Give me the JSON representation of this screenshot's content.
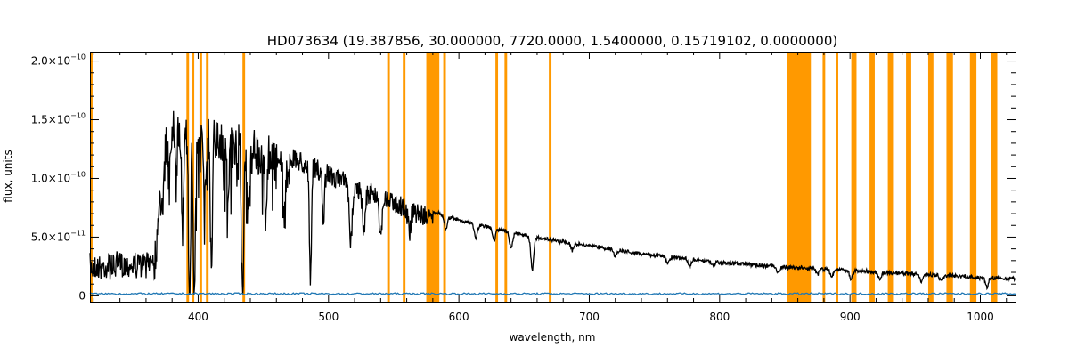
{
  "chart_data": {
    "type": "line",
    "title": "HD073634    (19.387856, 30.000000, 7720.0000, 1.5400000, 0.15719102, 0.0000000)",
    "xlabel": "wavelength, nm",
    "ylabel": "flux, units",
    "xlim": [
      317,
      1027
    ],
    "ylim": [
      -5e-12,
      2.08e-10
    ],
    "x_ticks": [
      {
        "value": 400,
        "label": "400"
      },
      {
        "value": 500,
        "label": "500"
      },
      {
        "value": 600,
        "label": "600"
      },
      {
        "value": 700,
        "label": "700"
      },
      {
        "value": 800,
        "label": "800"
      },
      {
        "value": 900,
        "label": "900"
      },
      {
        "value": 1000,
        "label": "1000"
      }
    ],
    "y_ticks": [
      {
        "value": 0,
        "label": "0",
        "exp": ""
      },
      {
        "value": 5e-11,
        "label": "5.0×10",
        "exp": "−11"
      },
      {
        "value": 1e-10,
        "label": "1.0×10",
        "exp": "−10"
      },
      {
        "value": 1.5e-10,
        "label": "1.5×10",
        "exp": "−10"
      },
      {
        "value": 2e-10,
        "label": "2.0×10",
        "exp": "−10"
      }
    ],
    "grid": false,
    "colors": {
      "spectrum": "#000000",
      "error": "#1f77b4",
      "mask": "#ff9900"
    },
    "masked_bands": [
      [
        317,
        319
      ],
      [
        391,
        393
      ],
      [
        395,
        397
      ],
      [
        401,
        403
      ],
      [
        406,
        408
      ],
      [
        434,
        436
      ],
      [
        545,
        547
      ],
      [
        557,
        559
      ],
      [
        575,
        585
      ],
      [
        588,
        590
      ],
      [
        628,
        630
      ],
      [
        635,
        637
      ],
      [
        669,
        671
      ],
      [
        852,
        870
      ],
      [
        879,
        881
      ],
      [
        889,
        891
      ],
      [
        901,
        905
      ],
      [
        915,
        919
      ],
      [
        929,
        933
      ],
      [
        943,
        947
      ],
      [
        960,
        964
      ],
      [
        974,
        979
      ],
      [
        992,
        997
      ],
      [
        1008,
        1013
      ]
    ],
    "series": [
      {
        "values_x": [
          317,
          330,
          345,
          360,
          366,
          370,
          373,
          377,
          380,
          385,
          390,
          395,
          400,
          410,
          420,
          430,
          450,
          470,
          500,
          530,
          560,
          578,
          600,
          650,
          700,
          750,
          800,
          850,
          870,
          900,
          950,
          1000,
          1027
        ],
        "values_y": [
          3.5e-11,
          3.6e-11,
          3.7e-11,
          3.8e-11,
          4.5e-11,
          8e-11,
          1.3e-10,
          1.55e-10,
          1.6e-10,
          1.62e-10,
          1.6e-10,
          1.6e-10,
          1.58e-10,
          1.55e-10,
          1.52e-10,
          1.47e-10,
          1.37e-10,
          1.27e-10,
          1.12e-10,
          9.7e-11,
          8.4e-11,
          7.4e-11,
          6.6e-11,
          5.3e-11,
          4.4e-11,
          3.6e-11,
          3e-11,
          2.6e-11,
          2.5e-11,
          2.3e-11,
          2e-11,
          1.7e-11,
          1.6e-11
        ]
      }
    ],
    "absorption_lines": [
      {
        "x": 373,
        "depth": 3.5e-11
      },
      {
        "x": 378,
        "depth": 4e-11
      },
      {
        "x": 383,
        "depth": 4.5e-11
      },
      {
        "x": 388,
        "depth": 7.5e-11
      },
      {
        "x": 393.4,
        "depth": 1.55e-10
      },
      {
        "x": 397,
        "depth": 1.45e-10
      },
      {
        "x": 405,
        "depth": 6e-11
      },
      {
        "x": 410.2,
        "depth": 1.2e-10
      },
      {
        "x": 422.7,
        "depth": 5e-11
      },
      {
        "x": 434,
        "depth": 1.35e-10
      },
      {
        "x": 438,
        "depth": 6e-11
      },
      {
        "x": 452,
        "depth": 5e-11
      },
      {
        "x": 466,
        "depth": 5.5e-11
      },
      {
        "x": 486.1,
        "depth": 1e-10
      },
      {
        "x": 496,
        "depth": 4.5e-11
      },
      {
        "x": 517,
        "depth": 5e-11
      },
      {
        "x": 527,
        "depth": 3.5e-11
      },
      {
        "x": 540,
        "depth": 3e-11
      },
      {
        "x": 562,
        "depth": 2e-11
      },
      {
        "x": 590,
        "depth": 1.2e-11
      },
      {
        "x": 613,
        "depth": 1.2e-11
      },
      {
        "x": 627,
        "depth": 1e-11
      },
      {
        "x": 640,
        "depth": 1.4e-11
      },
      {
        "x": 656.3,
        "depth": 2.8e-11
      },
      {
        "x": 687,
        "depth": 6e-12
      },
      {
        "x": 720,
        "depth": 5e-12
      },
      {
        "x": 760,
        "depth": 6e-12
      },
      {
        "x": 777,
        "depth": 7e-12
      },
      {
        "x": 795,
        "depth": 3e-12
      },
      {
        "x": 845,
        "depth": 5e-12
      },
      {
        "x": 875,
        "depth": 5e-12
      },
      {
        "x": 886,
        "depth": 6e-12
      },
      {
        "x": 901,
        "depth": 7e-12
      },
      {
        "x": 923,
        "depth": 7e-12
      },
      {
        "x": 955,
        "depth": 6e-12
      },
      {
        "x": 970,
        "depth": 5e-12
      },
      {
        "x": 1005,
        "depth": 8e-12
      }
    ]
  }
}
